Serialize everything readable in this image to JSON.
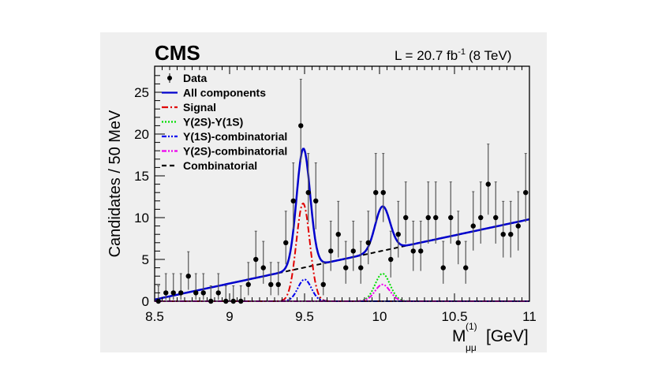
{
  "chart_data": {
    "type": "scatter",
    "experiment_label": "CMS",
    "luminosity_label": "L = 20.7 fb",
    "luminosity_exponent": "-1",
    "energy_label": "(8 TeV)",
    "ylabel": "Candidates / 50 MeV",
    "xlabel_main": "M",
    "xlabel_sub": "μμ",
    "xlabel_sup": "(1)",
    "xlabel_unit": "[GeV]",
    "xlim": [
      8.5,
      11
    ],
    "ylim": [
      0,
      28
    ],
    "x_ticks": [
      8.5,
      9,
      9.5,
      10,
      10.5,
      11
    ],
    "x_tick_labels": [
      "8.5",
      "9",
      "9.5",
      "10",
      "10.5",
      "11"
    ],
    "y_ticks": [
      0,
      5,
      10,
      15,
      20,
      25
    ],
    "y_tick_labels": [
      "0",
      "5",
      "10",
      "15",
      "20",
      "25"
    ],
    "grid": false,
    "legend_position": "top-left",
    "data": {
      "name": "Data",
      "bin_width": 0.05,
      "x_start": 8.525,
      "counts": [
        0,
        1,
        1,
        1,
        3,
        1,
        1,
        0,
        1,
        0,
        0,
        0,
        2,
        5,
        4,
        2,
        2,
        7,
        12,
        21,
        13,
        12,
        2,
        6,
        8,
        4,
        6,
        4,
        7,
        13,
        13,
        5,
        8,
        10,
        6,
        6,
        10,
        10,
        4,
        10,
        7,
        4,
        9,
        10,
        14,
        10,
        8,
        8,
        9,
        13
      ],
      "error_intervals": {
        "0": [
          0,
          1.84
        ],
        "1": [
          0.17,
          3.3
        ],
        "2": [
          0.71,
          4.64
        ],
        "3": [
          1.37,
          5.92
        ],
        "4": [
          2.09,
          7.16
        ],
        "5": [
          2.84,
          8.38
        ],
        "6": [
          3.62,
          9.58
        ],
        "7": [
          4.42,
          10.77
        ],
        "8": [
          5.23,
          11.95
        ],
        "9": [
          6.06,
          13.11
        ],
        "10": [
          6.89,
          14.27
        ],
        "12": [
          8.6,
          16.55
        ],
        "13": [
          9.47,
          17.68
        ],
        "14": [
          10.35,
          18.8
        ],
        "21": [
          16.64,
          26.56
        ]
      }
    },
    "components": [
      {
        "name": "All components",
        "color": "#0000cc",
        "style": "solid"
      },
      {
        "name": "Signal",
        "color": "#e00000",
        "style": "dashdot",
        "mean": 9.49,
        "sigma": 0.045,
        "peak": 11.7
      },
      {
        "name": "Υ(2S)-Υ(1S)",
        "color": "#00dd00",
        "style": "dotted",
        "mean": 10.02,
        "sigma": 0.05,
        "peak": 3.3
      },
      {
        "name": "Υ(1S)-combinatorial",
        "color": "#0000ee",
        "style": "dashdotdot",
        "mean": 9.5,
        "sigma": 0.045,
        "peak": 2.6
      },
      {
        "name": "Υ(2S)-combinatorial",
        "color": "#ee00ee",
        "style": "dashdotdot",
        "mean": 10.02,
        "sigma": 0.05,
        "peak": 2.0
      },
      {
        "name": "Combinatorial",
        "color": "#000000",
        "style": "dashed",
        "y_at_xmin": 0.2,
        "y_at_xmax": 9.8
      }
    ],
    "legend": [
      "Data",
      "All components",
      "Signal",
      "Υ(2S)-Υ(1S)",
      "Υ(1S)-combinatorial",
      "Υ(2S)-combinatorial",
      "Combinatorial"
    ]
  }
}
